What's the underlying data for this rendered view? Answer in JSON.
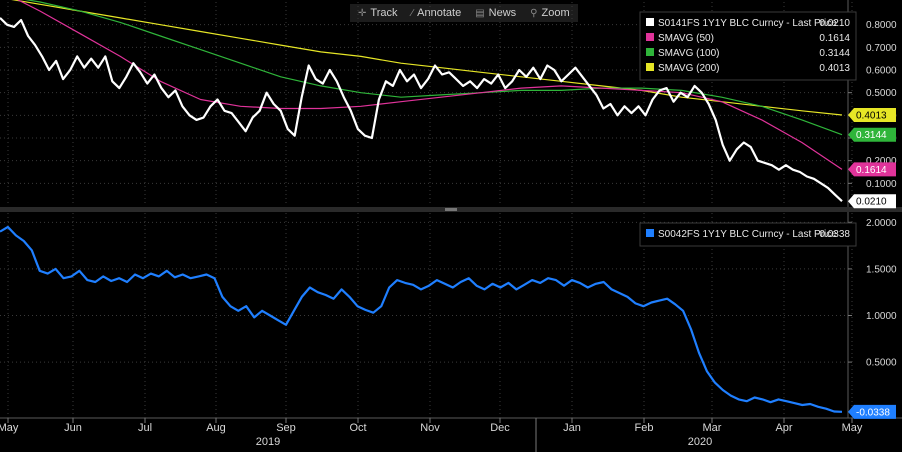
{
  "toolbar": {
    "track": "Track",
    "annotate": "Annotate",
    "news": "News",
    "zoom": "Zoom"
  },
  "chart_data": [
    {
      "type": "line",
      "ylim": [
        0.0,
        0.9
      ],
      "yticks": [
        "0.1000",
        "0.2000",
        "0.3000",
        "0.4000",
        "0.5000",
        "0.6000",
        "0.7000",
        "0.8000"
      ],
      "yticks_obscured": [
        "0.3000",
        "0.2000"
      ],
      "grid": true,
      "legend": "top-right",
      "series": [
        {
          "name": "S0141FS 1Y1Y BLC Curncy - Last Price",
          "last": "0.0210",
          "color": "#ffffff",
          "values": [
            0.83,
            0.8,
            0.79,
            0.82,
            0.75,
            0.71,
            0.66,
            0.6,
            0.64,
            0.56,
            0.6,
            0.66,
            0.61,
            0.65,
            0.61,
            0.66,
            0.55,
            0.52,
            0.57,
            0.63,
            0.59,
            0.54,
            0.58,
            0.52,
            0.48,
            0.51,
            0.44,
            0.4,
            0.38,
            0.39,
            0.44,
            0.47,
            0.42,
            0.41,
            0.37,
            0.33,
            0.39,
            0.42,
            0.5,
            0.45,
            0.42,
            0.34,
            0.31,
            0.48,
            0.62,
            0.56,
            0.54,
            0.6,
            0.55,
            0.48,
            0.42,
            0.34,
            0.31,
            0.3,
            0.47,
            0.55,
            0.53,
            0.6,
            0.55,
            0.58,
            0.52,
            0.56,
            0.62,
            0.58,
            0.59,
            0.56,
            0.53,
            0.55,
            0.52,
            0.56,
            0.54,
            0.58,
            0.52,
            0.55,
            0.6,
            0.57,
            0.61,
            0.56,
            0.62,
            0.6,
            0.55,
            0.58,
            0.61,
            0.57,
            0.53,
            0.49,
            0.43,
            0.45,
            0.4,
            0.44,
            0.41,
            0.44,
            0.4,
            0.47,
            0.51,
            0.52,
            0.46,
            0.5,
            0.48,
            0.53,
            0.5,
            0.45,
            0.38,
            0.27,
            0.2,
            0.25,
            0.28,
            0.26,
            0.2,
            0.19,
            0.18,
            0.16,
            0.18,
            0.16,
            0.15,
            0.13,
            0.12,
            0.1,
            0.08,
            0.05,
            0.021
          ]
        },
        {
          "name": "SMAVG (50)",
          "last": "0.1614",
          "color": "#e0339a",
          "values": [
            0.95,
            0.86,
            0.76,
            0.66,
            0.55,
            0.47,
            0.44,
            0.43,
            0.43,
            0.44,
            0.46,
            0.48,
            0.5,
            0.52,
            0.53,
            0.52,
            0.51,
            0.5,
            0.46,
            0.38,
            0.28,
            0.1614
          ]
        },
        {
          "name": "SMAVG (100)",
          "last": "0.3144",
          "color": "#2fb53a",
          "values": [
            0.93,
            0.9,
            0.86,
            0.81,
            0.75,
            0.69,
            0.63,
            0.57,
            0.53,
            0.5,
            0.48,
            0.49,
            0.5,
            0.51,
            0.51,
            0.52,
            0.52,
            0.51,
            0.48,
            0.44,
            0.38,
            0.3144
          ]
        },
        {
          "name": "SMAVG (200)",
          "last": "0.4013",
          "color": "#e6e626",
          "values": [
            0.92,
            0.89,
            0.86,
            0.83,
            0.8,
            0.77,
            0.74,
            0.71,
            0.68,
            0.66,
            0.63,
            0.61,
            0.59,
            0.57,
            0.55,
            0.53,
            0.51,
            0.48,
            0.46,
            0.44,
            0.42,
            0.4013
          ]
        }
      ]
    },
    {
      "type": "line",
      "ylim": [
        -0.1,
        2.1
      ],
      "yticks": [
        "0.5000",
        "1.0000",
        "1.5000",
        "2.0000"
      ],
      "grid": true,
      "legend": "top-right",
      "series": [
        {
          "name": "S0042FS 1Y1Y BLC Curncy - Last Price",
          "last": "-0.0338",
          "color": "#1f7fff",
          "values": [
            1.9,
            1.95,
            1.86,
            1.8,
            1.7,
            1.48,
            1.45,
            1.5,
            1.4,
            1.42,
            1.48,
            1.38,
            1.36,
            1.42,
            1.37,
            1.4,
            1.36,
            1.44,
            1.4,
            1.45,
            1.42,
            1.48,
            1.41,
            1.44,
            1.4,
            1.42,
            1.44,
            1.4,
            1.2,
            1.1,
            1.05,
            1.1,
            0.98,
            1.05,
            1.0,
            0.95,
            0.9,
            1.05,
            1.2,
            1.3,
            1.25,
            1.22,
            1.18,
            1.28,
            1.2,
            1.1,
            1.06,
            1.03,
            1.1,
            1.3,
            1.38,
            1.35,
            1.33,
            1.28,
            1.32,
            1.38,
            1.34,
            1.3,
            1.36,
            1.4,
            1.32,
            1.28,
            1.34,
            1.3,
            1.35,
            1.28,
            1.33,
            1.38,
            1.35,
            1.4,
            1.38,
            1.32,
            1.38,
            1.35,
            1.3,
            1.34,
            1.36,
            1.28,
            1.24,
            1.2,
            1.13,
            1.1,
            1.14,
            1.16,
            1.18,
            1.12,
            1.05,
            0.85,
            0.6,
            0.4,
            0.28,
            0.2,
            0.14,
            0.1,
            0.08,
            0.12,
            0.1,
            0.07,
            0.1,
            0.08,
            0.06,
            0.04,
            0.05,
            0.02,
            0.0,
            -0.03,
            -0.0338
          ]
        }
      ]
    }
  ],
  "x_axis": {
    "months": [
      "May",
      "Jun",
      "Jul",
      "Aug",
      "Sep",
      "Oct",
      "Nov",
      "Dec",
      "Jan",
      "Feb",
      "Mar",
      "Apr",
      "May"
    ],
    "years": [
      "2019",
      "2020"
    ]
  }
}
